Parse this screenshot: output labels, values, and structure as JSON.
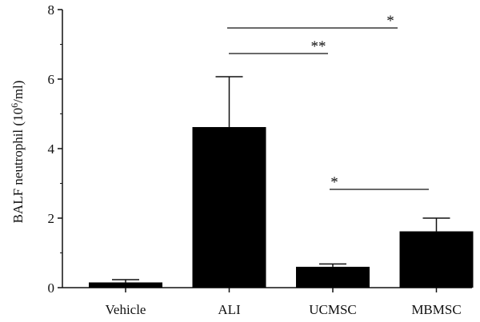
{
  "chart_data": {
    "type": "bar",
    "categories": [
      "Vehicle",
      "ALI",
      "UCMSC",
      "MBMSC"
    ],
    "values": [
      0.15,
      4.62,
      0.6,
      1.62
    ],
    "error": [
      0.08,
      1.45,
      0.08,
      0.38
    ],
    "title": "",
    "xlabel": "",
    "ylabel": "BALF neutrophil (10",
    "ylabel_sup": "6",
    "ylabel_tail": "/ml)",
    "ylim": [
      0,
      8
    ],
    "yticks": [
      "0",
      "2",
      "4",
      "6",
      "8"
    ],
    "grid": false,
    "bar_color": "#000000",
    "significance": [
      {
        "from": "ALI",
        "to": "MBMSC",
        "label": "*"
      },
      {
        "from": "ALI",
        "to": "UCMSC",
        "label": "**"
      },
      {
        "from": "UCMSC",
        "to": "MBMSC",
        "label": "*"
      }
    ]
  }
}
